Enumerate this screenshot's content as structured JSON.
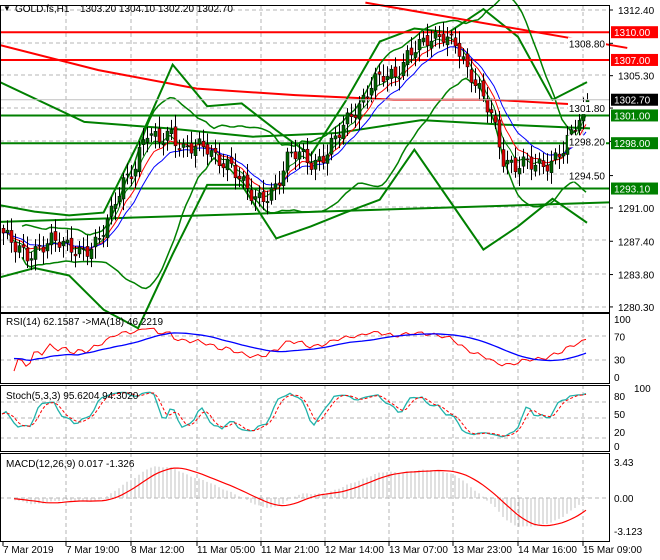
{
  "header": {
    "symbol": "GOLD.fs,H1",
    "ohlc": "1303.20 1304.10 1302.20 1302.70"
  },
  "colors": {
    "bull": "#006400",
    "bear": "#e00000",
    "support": "#008000",
    "resistance": "#ff0000",
    "rsi": "#ff0000",
    "rsi_ma": "#0000ff",
    "stoch_main": "#20b2aa",
    "stoch_signal": "#ff0000",
    "macd_hist": "#c0c0c0",
    "macd_signal": "#ff0000"
  },
  "chart_data": [
    {
      "type": "candlestick",
      "title": "GOLD.fs,H1",
      "ylim": [
        1280.3,
        1312.4
      ],
      "y_ticks": [
        "1312.40",
        "1308.80",
        "1305.30",
        "1301.80",
        "1298.20",
        "1294.50",
        "1291.00",
        "1287.40",
        "1283.80",
        "1280.30"
      ],
      "x_ticks": [
        "7 Mar 2019",
        "7 Mar 19:00",
        "8 Mar 12:00",
        "11 Mar 05:00",
        "11 Mar 21:00",
        "12 Mar 14:00",
        "13 Mar 07:00",
        "13 Mar 23:00",
        "14 Mar 16:00",
        "15 Mar 09:00"
      ],
      "grid": true,
      "approx_closes": [
        1288.3,
        1286.5,
        1285.8,
        1287.0,
        1287.5,
        1286.8,
        1286.5,
        1286.7,
        1287.3,
        1290.0,
        1294.0,
        1295.5,
        1299.0,
        1298.0,
        1299.5,
        1297.5,
        1297.3,
        1297.5,
        1296.5,
        1295.8,
        1293.5,
        1292.0,
        1292.5,
        1293.5,
        1296.5,
        1297.0,
        1296.0,
        1296.5,
        1298.5,
        1301.0,
        1302.5,
        1304.5,
        1305.0,
        1305.5,
        1308.0,
        1308.5,
        1309.0,
        1310.0,
        1309.0,
        1305.2,
        1303.5,
        1301.5,
        1296.0,
        1295.0,
        1296.0,
        1296.0,
        1295.8,
        1297.0,
        1300.0,
        1302.7
      ],
      "current_price": "1302.70",
      "levels": [
        {
          "label": "1310.00",
          "value": 1310.0,
          "kind": "resistance"
        },
        {
          "label": "1307.00",
          "value": 1307.0,
          "kind": "resistance"
        },
        {
          "label": "1301.00",
          "value": 1301.0,
          "kind": "support"
        },
        {
          "label": "1298.00",
          "value": 1298.0,
          "kind": "support"
        },
        {
          "label": "1293.10",
          "value": 1293.1,
          "kind": "support"
        }
      ],
      "resistance_trendline": [
        [
          0.6,
          1313.2
        ],
        [
          1.03,
          1308.3
        ]
      ],
      "support_trendline": [
        [
          0.0,
          1289.5
        ],
        [
          1.0,
          1291.6
        ]
      ],
      "slow_ma_red": [
        1308.6,
        1305.9,
        1303.9,
        1303.2,
        1302.7,
        1302.7,
        1302.1
      ],
      "slow_ma_green": [
        1304.6,
        1300.3,
        1299.6,
        1298.7,
        1299.1,
        1300.5,
        1300.0,
        1299.6
      ],
      "wide_band_upper": [
        1291.3,
        1290.6,
        1290.2,
        1290.5,
        1298.0,
        1306.5,
        1302.0,
        1302.3,
        1299.4,
        1296.7,
        1302.5,
        1309.0,
        1310.4,
        1310.0,
        1312.5,
        1309.5,
        1302.7,
        1304.6
      ],
      "wide_band_lower": [
        1283.5,
        1284.5,
        1283.7,
        1280.0,
        1278.0,
        1286.0,
        1293.5,
        1293.5,
        1287.7,
        1289.0,
        1290.5,
        1291.9,
        1297.3,
        1291.9,
        1286.5,
        1289.0,
        1292.0,
        1289.4
      ]
    },
    {
      "type": "line",
      "title": "RSI(14) 62.1587  ->MA(18) 46.2219",
      "ylim": [
        0,
        100
      ],
      "y_ticks": [
        "100",
        "70",
        "30",
        "0"
      ],
      "series": [
        {
          "name": "RSI(14)",
          "last": 62.1587
        },
        {
          "name": "MA(18)",
          "last": 46.2219
        }
      ]
    },
    {
      "type": "line",
      "title": "Stoch(5,3,3) 95.6204 94.3020",
      "ylim": [
        0,
        100
      ],
      "y_ticks": [
        "100",
        "80",
        "50",
        "20",
        "0"
      ],
      "series": [
        {
          "name": "main",
          "last": 95.6204
        },
        {
          "name": "signal",
          "last": 94.302
        }
      ]
    },
    {
      "type": "bar",
      "title": "MACD(12,26,9) 0.017 -1.326",
      "ylim": [
        -3.123,
        3.43
      ],
      "y_ticks": [
        "3.43",
        "0.00",
        "-3.123"
      ],
      "series": [
        {
          "name": "MACD",
          "last": 0.017
        },
        {
          "name": "signal",
          "last": -1.326
        }
      ]
    }
  ]
}
